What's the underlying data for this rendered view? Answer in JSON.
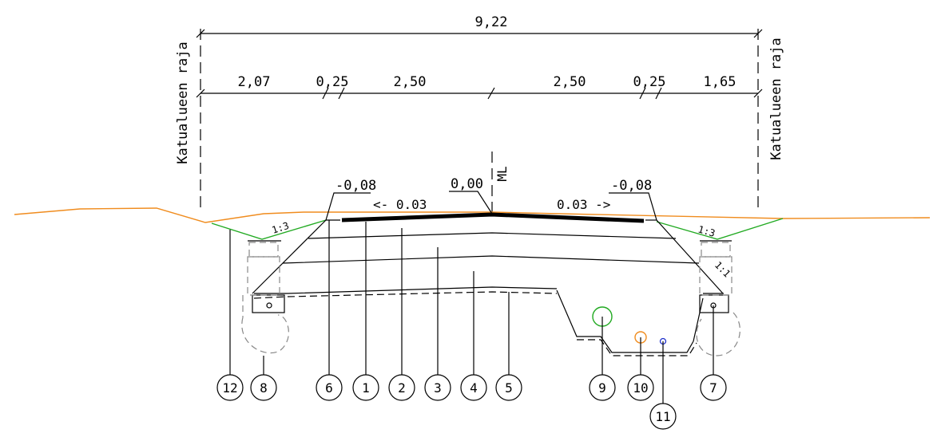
{
  "dims": {
    "total": "9,22",
    "parts": [
      "2,07",
      "0,25",
      "2,50",
      "2,50",
      "0,25",
      "1,65"
    ]
  },
  "labels": {
    "boundary_left": "Katualueen raja",
    "boundary_right": "Katualueen raja",
    "ml": "ML"
  },
  "levels": {
    "left": "-0,08",
    "center": "0,00",
    "right": "-0,08"
  },
  "slopes": {
    "left_cross": "<- 0.03",
    "right_cross": "0.03 ->",
    "left_ditch": "1:3",
    "right_ditch": "1:3",
    "right_bank": "1:1"
  },
  "markers": [
    "12",
    "8",
    "6",
    "1",
    "2",
    "3",
    "4",
    "5",
    "9",
    "10",
    "7",
    "11"
  ],
  "colors": {
    "ground": "#f08c1e",
    "ditch": "#22aa22",
    "pipe_green": "#22aa22",
    "pipe_orange": "#f08c1e",
    "pipe_blue": "#2233cc"
  }
}
